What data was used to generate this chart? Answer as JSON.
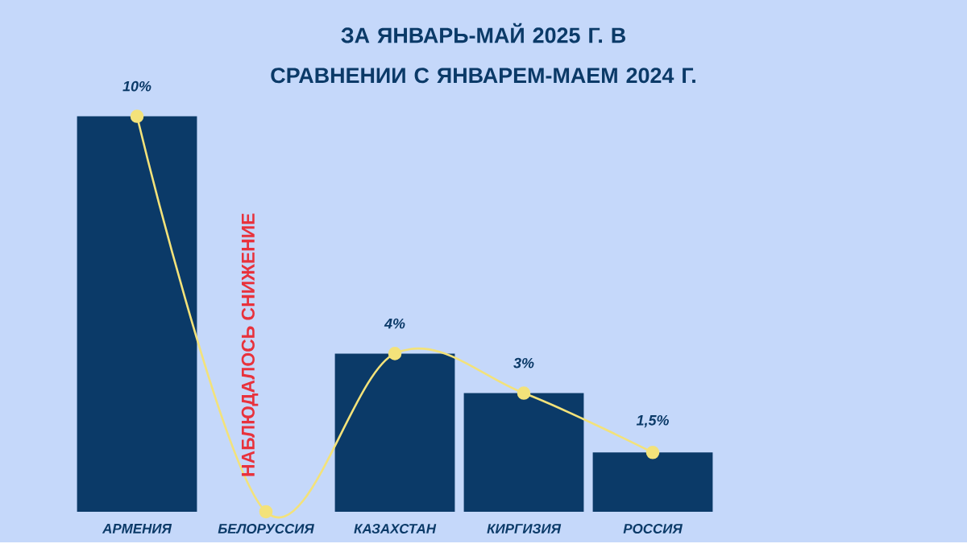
{
  "chart_data": {
    "type": "bar",
    "title": "ЗА ЯНВАРЬ-МАЙ 2025 Г. В СРАВНЕНИИ С ЯНВАРЕМ-МАЕМ 2024 Г.",
    "categories": [
      "АРМЕНИЯ",
      "БЕЛОРУССИЯ",
      "КАЗАХСТАН",
      "КИРГИЗИЯ",
      "РОССИЯ"
    ],
    "series": [
      {
        "color": "#0b3a68",
        "values": [
          10,
          null,
          4,
          3,
          1.5
        ],
        "value_labels": [
          "10%",
          null,
          "4%",
          "3%",
          "1,5%"
        ]
      },
      {
        "type": "line",
        "color": "#f3e27a",
        "marker": "circle",
        "values": [
          10,
          0,
          4,
          3,
          1.5
        ]
      }
    ],
    "annotations": [
      "НАБЛЮДАЛОСЬ СНИЖЕНИЕ"
    ]
  }
}
